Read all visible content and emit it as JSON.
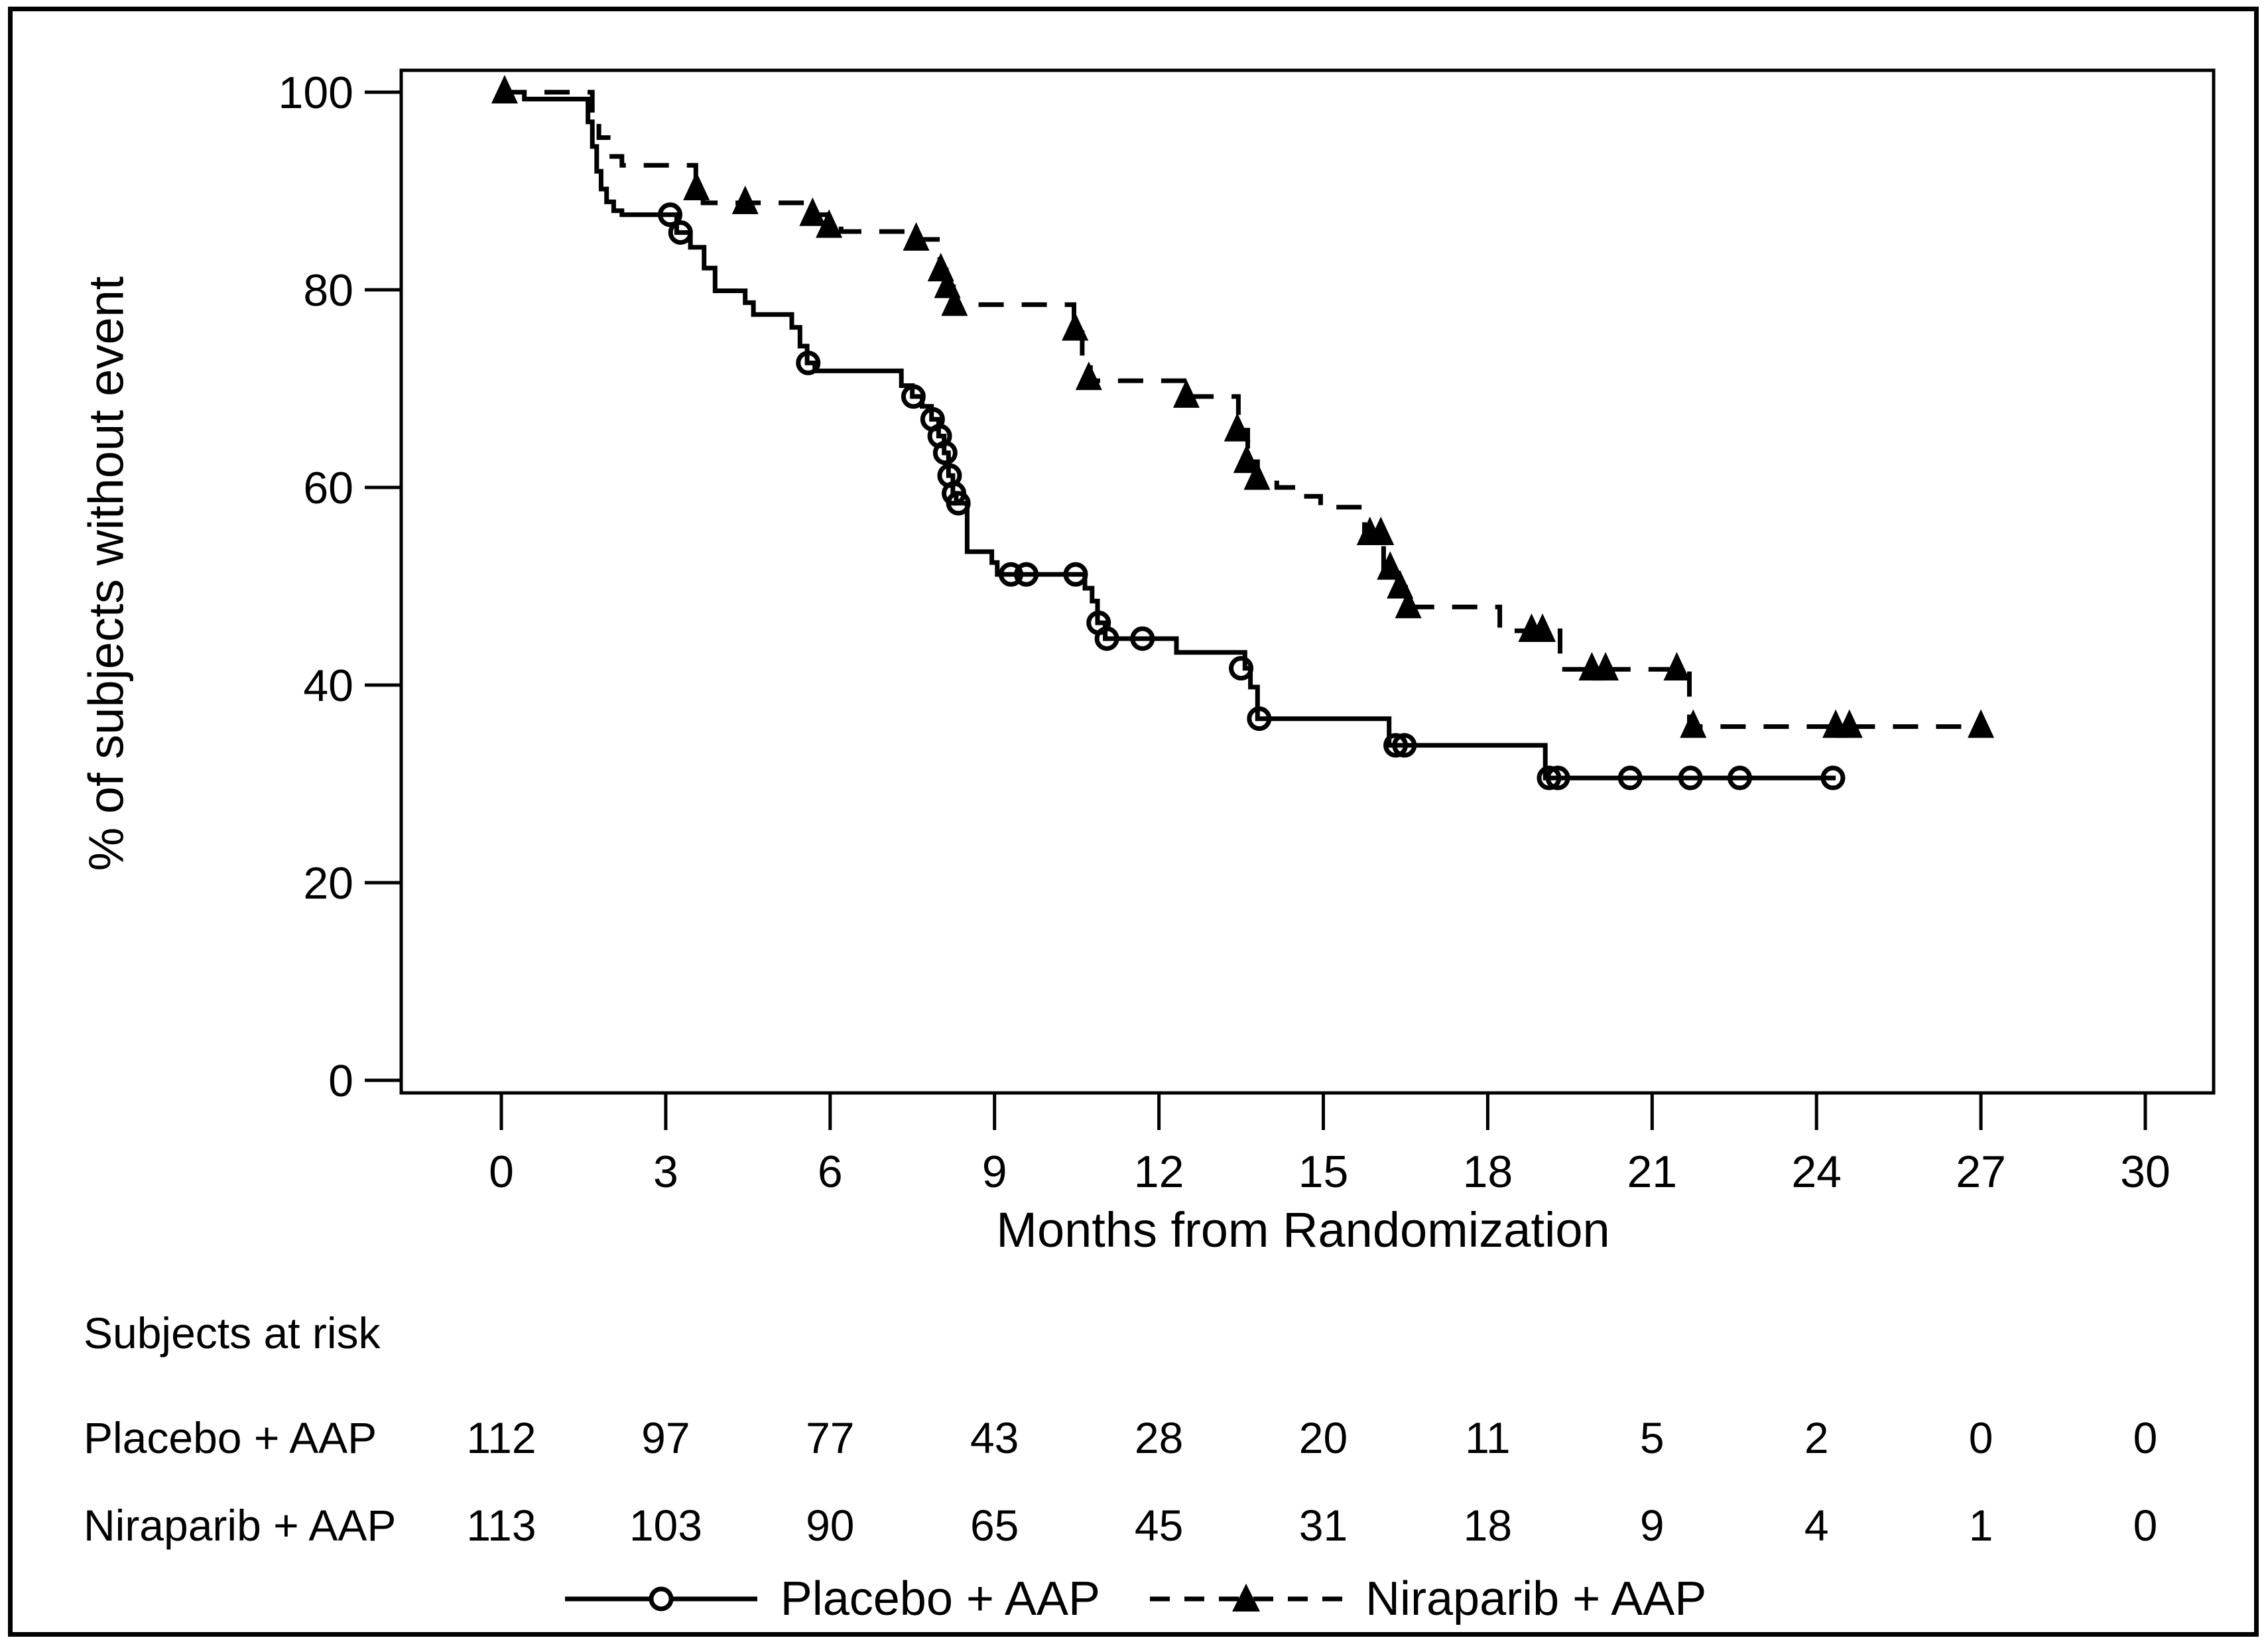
{
  "figure": {
    "background": "#ffffff",
    "line_color": "#000000"
  },
  "axes": {
    "y_label": "% of subjects without event",
    "x_label": "Months from Randomization",
    "y_ticks": [
      "100",
      "80",
      "60",
      "40",
      "20",
      "0"
    ],
    "x_ticks": [
      "0",
      "3",
      "6",
      "9",
      "12",
      "15",
      "18",
      "21",
      "24",
      "27",
      "30"
    ]
  },
  "risk_table": {
    "title": "Subjects at risk",
    "rows": [
      {
        "label": "Placebo + AAP",
        "counts": [
          "112",
          "97",
          "77",
          "43",
          "28",
          "20",
          "11",
          "5",
          "2",
          "0",
          "0"
        ]
      },
      {
        "label": "Niraparib + AAP",
        "counts": [
          "113",
          "103",
          "90",
          "65",
          "45",
          "31",
          "18",
          "9",
          "4",
          "1",
          "0"
        ]
      }
    ]
  },
  "legend": {
    "items": [
      {
        "label": "Placebo + AAP",
        "line": "solid",
        "marker": "open-circle"
      },
      {
        "label": "Niraparib + AAP",
        "line": "dashed",
        "marker": "filled-triangle"
      }
    ]
  },
  "chart_data": {
    "type": "line",
    "subtype": "kaplan_meier_step",
    "title": "",
    "xlabel": "Months from Randomization",
    "ylabel": "% of subjects without event",
    "xlim": [
      0,
      31.3
    ],
    "ylim": [
      0,
      100
    ],
    "x_tick_values": [
      0,
      3,
      6,
      9,
      12,
      15,
      18,
      21,
      24,
      27,
      30
    ],
    "y_tick_values": [
      100,
      80,
      60,
      40,
      20,
      0
    ],
    "grid": false,
    "legend_position": "bottom",
    "series": [
      {
        "name": "Placebo + AAP",
        "line_style": "solid",
        "marker": "open-circle",
        "marker_meaning": "censored observation",
        "color": "#000000",
        "steps_month_percent": [
          [
            0,
            100
          ],
          [
            0.42,
            99.3
          ],
          [
            1.5,
            99.3
          ],
          [
            1.58,
            97
          ],
          [
            1.66,
            94.5
          ],
          [
            1.74,
            92
          ],
          [
            1.82,
            90.2
          ],
          [
            1.92,
            88.9
          ],
          [
            2.05,
            88
          ],
          [
            2.2,
            87.6
          ],
          [
            3.05,
            87.6
          ],
          [
            3.2,
            85.8
          ],
          [
            3.45,
            84.3
          ],
          [
            3.7,
            82.2
          ],
          [
            3.9,
            79.9
          ],
          [
            4.45,
            78.7
          ],
          [
            4.6,
            77.5
          ],
          [
            5.3,
            76.2
          ],
          [
            5.45,
            74.3
          ],
          [
            5.58,
            72.6
          ],
          [
            5.72,
            71.8
          ],
          [
            7.1,
            71.8
          ],
          [
            7.3,
            70.3
          ],
          [
            7.5,
            69.2
          ],
          [
            7.68,
            68.2
          ],
          [
            7.85,
            66.9
          ],
          [
            7.98,
            65.2
          ],
          [
            8.08,
            63.5
          ],
          [
            8.16,
            61.2
          ],
          [
            8.24,
            59.4
          ],
          [
            8.3,
            58.4
          ],
          [
            8.5,
            53.5
          ],
          [
            8.95,
            52.4
          ],
          [
            9.05,
            51.2
          ],
          [
            10.5,
            51.2
          ],
          [
            10.65,
            49.8
          ],
          [
            10.78,
            48.5
          ],
          [
            10.88,
            46.3
          ],
          [
            11.02,
            44.7
          ],
          [
            12.2,
            44.7
          ],
          [
            12.32,
            43.3
          ],
          [
            13.45,
            43.3
          ],
          [
            13.57,
            41.7
          ],
          [
            13.67,
            39.8
          ],
          [
            13.8,
            36.6
          ],
          [
            16.1,
            36.6
          ],
          [
            16.2,
            33.9
          ],
          [
            18.95,
            33.9
          ],
          [
            19.05,
            30.6
          ],
          [
            24.35,
            30.6
          ]
        ],
        "censor_marks_month_percent": [
          [
            3.08,
            87.6
          ],
          [
            3.27,
            85.8
          ],
          [
            5.6,
            72.6
          ],
          [
            7.52,
            69.2
          ],
          [
            7.87,
            66.9
          ],
          [
            8.0,
            65.2
          ],
          [
            8.1,
            63.5
          ],
          [
            8.18,
            61.2
          ],
          [
            8.26,
            59.4
          ],
          [
            8.34,
            58.4
          ],
          [
            9.3,
            51.2
          ],
          [
            9.58,
            51.2
          ],
          [
            10.48,
            51.2
          ],
          [
            10.9,
            46.3
          ],
          [
            11.05,
            44.7
          ],
          [
            11.7,
            44.7
          ],
          [
            13.5,
            41.7
          ],
          [
            13.83,
            36.6
          ],
          [
            16.32,
            33.9
          ],
          [
            16.48,
            33.9
          ],
          [
            19.12,
            30.6
          ],
          [
            19.28,
            30.6
          ],
          [
            20.6,
            30.6
          ],
          [
            21.7,
            30.6
          ],
          [
            22.6,
            30.6
          ],
          [
            24.3,
            30.6
          ]
        ]
      },
      {
        "name": "Niraparib + AAP",
        "line_style": "dashed",
        "marker": "filled-triangle",
        "marker_meaning": "censored observation",
        "color": "#000000",
        "steps_month_percent": [
          [
            0,
            100
          ],
          [
            1.58,
            100
          ],
          [
            1.66,
            97.8
          ],
          [
            1.78,
            95.4
          ],
          [
            1.95,
            93.5
          ],
          [
            2.2,
            92.6
          ],
          [
            3.45,
            92.6
          ],
          [
            3.55,
            90.2
          ],
          [
            3.68,
            88.8
          ],
          [
            5.5,
            88.8
          ],
          [
            5.65,
            87.6
          ],
          [
            5.95,
            86.4
          ],
          [
            6.2,
            85.9
          ],
          [
            7.4,
            85.9
          ],
          [
            7.55,
            85.1
          ],
          [
            7.9,
            85.1
          ],
          [
            8.0,
            82
          ],
          [
            8.12,
            80.3
          ],
          [
            8.25,
            78.5
          ],
          [
            10.3,
            78.5
          ],
          [
            10.45,
            76
          ],
          [
            10.6,
            73.2
          ],
          [
            10.75,
            70.8
          ],
          [
            12.4,
            70.8
          ],
          [
            12.55,
            69.2
          ],
          [
            13.3,
            69.2
          ],
          [
            13.45,
            65.8
          ],
          [
            13.62,
            62.6
          ],
          [
            13.8,
            60.9
          ],
          [
            14.15,
            60
          ],
          [
            14.6,
            59.1
          ],
          [
            14.95,
            58
          ],
          [
            15.75,
            55.3
          ],
          [
            16.1,
            51.8
          ],
          [
            16.35,
            49.9
          ],
          [
            16.5,
            47.9
          ],
          [
            18.1,
            47.9
          ],
          [
            18.22,
            45.5
          ],
          [
            19.2,
            45.5
          ],
          [
            19.32,
            41.6
          ],
          [
            21.55,
            41.6
          ],
          [
            21.68,
            35.8
          ],
          [
            27.05,
            35.8
          ]
        ],
        "censor_marks_month_percent": [
          [
            0.06,
            100
          ],
          [
            3.56,
            90.2
          ],
          [
            4.45,
            88.8
          ],
          [
            5.68,
            87.6
          ],
          [
            5.98,
            86.4
          ],
          [
            7.57,
            85.1
          ],
          [
            8.02,
            82
          ],
          [
            8.14,
            80.3
          ],
          [
            8.27,
            78.5
          ],
          [
            10.47,
            76
          ],
          [
            10.72,
            71
          ],
          [
            12.5,
            69.2
          ],
          [
            13.43,
            65.8
          ],
          [
            13.6,
            62.6
          ],
          [
            13.79,
            60.9
          ],
          [
            15.85,
            55.3
          ],
          [
            16.05,
            55.3
          ],
          [
            16.22,
            51.8
          ],
          [
            16.4,
            49.9
          ],
          [
            16.55,
            47.9
          ],
          [
            18.8,
            45.5
          ],
          [
            19.0,
            45.5
          ],
          [
            19.9,
            41.6
          ],
          [
            20.15,
            41.6
          ],
          [
            21.45,
            41.6
          ],
          [
            21.75,
            35.8
          ],
          [
            24.35,
            35.8
          ],
          [
            24.6,
            35.8
          ],
          [
            27.0,
            35.8
          ]
        ]
      }
    ]
  }
}
